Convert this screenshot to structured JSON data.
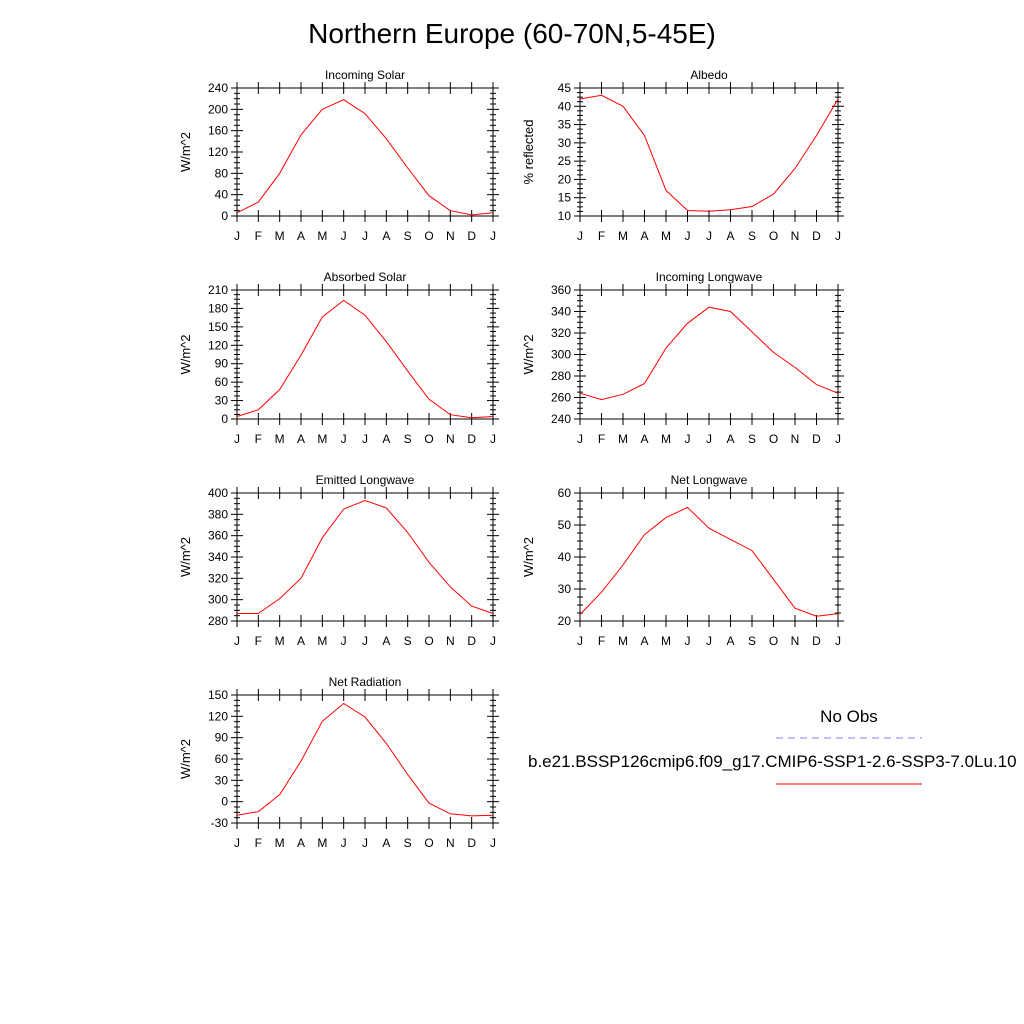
{
  "title": "Northern Europe (60-70N,5-45E)",
  "months": [
    "J",
    "F",
    "M",
    "A",
    "M",
    "J",
    "J",
    "A",
    "S",
    "O",
    "N",
    "D",
    "J"
  ],
  "legend": {
    "obs_label": "No Obs",
    "model_label": "b.e21.BSSP126cmip6.f09_g17.CMIP6-SSP1-2.6-SSP3-7.0Lu.10",
    "obs_color": "#8080ff",
    "model_color": "#ff0000"
  },
  "chart_data": [
    {
      "id": "incoming-solar",
      "type": "line",
      "title": "Incoming Solar",
      "ylabel": "W/m^2",
      "ylim": [
        0,
        240
      ],
      "yticks": [
        0,
        40,
        80,
        120,
        160,
        200,
        240
      ],
      "series": [
        {
          "color": "#ff0000",
          "values": [
            6,
            26,
            80,
            152,
            200,
            218,
            192,
            145,
            90,
            38,
            10,
            2,
            6
          ]
        }
      ]
    },
    {
      "id": "albedo",
      "type": "line",
      "title": "Albedo",
      "ylabel": "% reflected",
      "ylim": [
        10,
        45
      ],
      "yticks": [
        10,
        15,
        20,
        25,
        30,
        35,
        40,
        45
      ],
      "series": [
        {
          "color": "#ff0000",
          "values": [
            42,
            43,
            40,
            32,
            17,
            11.5,
            11.3,
            11.7,
            12.6,
            16,
            23,
            32,
            42
          ]
        }
      ]
    },
    {
      "id": "absorbed-solar",
      "type": "line",
      "title": "Absorbed Solar",
      "ylabel": "W/m^2",
      "ylim": [
        0,
        210
      ],
      "yticks": [
        0,
        30,
        60,
        90,
        120,
        150,
        180,
        210
      ],
      "series": [
        {
          "color": "#ff0000",
          "values": [
            4,
            15,
            48,
            104,
            166,
            193,
            169,
            126,
            78,
            32,
            7,
            2,
            4
          ]
        }
      ]
    },
    {
      "id": "incoming-longwave",
      "type": "line",
      "title": "Incoming Longwave",
      "ylabel": "W/m^2",
      "ylim": [
        240,
        360
      ],
      "yticks": [
        240,
        260,
        280,
        300,
        320,
        340,
        360
      ],
      "series": [
        {
          "color": "#ff0000",
          "values": [
            264,
            258,
            263,
            273,
            306,
            329,
            344,
            340,
            321,
            302,
            288,
            272,
            264
          ]
        }
      ]
    },
    {
      "id": "emitted-longwave",
      "type": "line",
      "title": "Emitted Longwave",
      "ylabel": "W/m^2",
      "ylim": [
        280,
        400
      ],
      "yticks": [
        280,
        300,
        320,
        340,
        360,
        380,
        400
      ],
      "series": [
        {
          "color": "#ff0000",
          "values": [
            287,
            287,
            301,
            320,
            358,
            385,
            393,
            386,
            363,
            335,
            312,
            294,
            287
          ]
        }
      ]
    },
    {
      "id": "net-longwave",
      "type": "line",
      "title": "Net Longwave",
      "ylabel": "W/m^2",
      "ylim": [
        20,
        60
      ],
      "yticks": [
        20,
        30,
        40,
        50,
        60
      ],
      "series": [
        {
          "color": "#ff0000",
          "values": [
            22,
            29,
            37.5,
            47,
            52.3,
            55.5,
            49,
            45.5,
            42,
            33,
            24,
            21.5,
            22.3
          ]
        }
      ]
    },
    {
      "id": "net-radiation",
      "type": "line",
      "title": "Net Radiation",
      "ylabel": "W/m^2",
      "ylim": [
        -30,
        150
      ],
      "yticks": [
        -30,
        0,
        30,
        60,
        90,
        120,
        150
      ],
      "series": [
        {
          "color": "#ff0000",
          "values": [
            -19,
            -14,
            10,
            57,
            113,
            138,
            119,
            82,
            38,
            -2,
            -17,
            -20,
            -19
          ]
        }
      ]
    }
  ]
}
